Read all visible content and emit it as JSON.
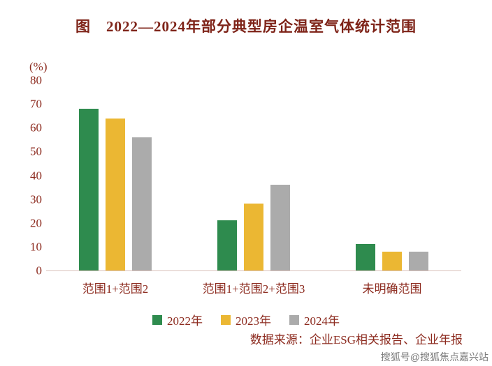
{
  "title": "图　2022—2024年部分典型房企温室气体统计范围",
  "source": "数据来源：企业ESG相关报告、企业年报",
  "watermark": "搜狐号@搜狐焦点嘉兴站",
  "colors": {
    "text": "#8C2A1E",
    "title": "#7E2318",
    "series_2022": "#2E8B4E",
    "series_2023": "#EBB733",
    "series_2024": "#ABABAB",
    "axis_line": "#D9C0BA"
  },
  "chart_data": {
    "type": "bar",
    "title": "图 2022—2024年部分典型房企温室气体统计范围",
    "unit_label": "(%)",
    "xlabel": "",
    "ylabel": "(%)",
    "ylim": [
      0,
      80
    ],
    "yticks": [
      0,
      10,
      20,
      30,
      40,
      50,
      60,
      70,
      80
    ],
    "grid": false,
    "legend_position": "bottom",
    "categories": [
      "范围1+范围2",
      "范围1+范围2+范围3",
      "未明确范围"
    ],
    "series": [
      {
        "name": "2022年",
        "color": "#2E8B4E",
        "values": [
          68,
          21,
          11
        ]
      },
      {
        "name": "2023年",
        "color": "#EBB733",
        "values": [
          64,
          28,
          8
        ]
      },
      {
        "name": "2024年",
        "color": "#ABABAB",
        "values": [
          56,
          36,
          8
        ]
      }
    ]
  }
}
